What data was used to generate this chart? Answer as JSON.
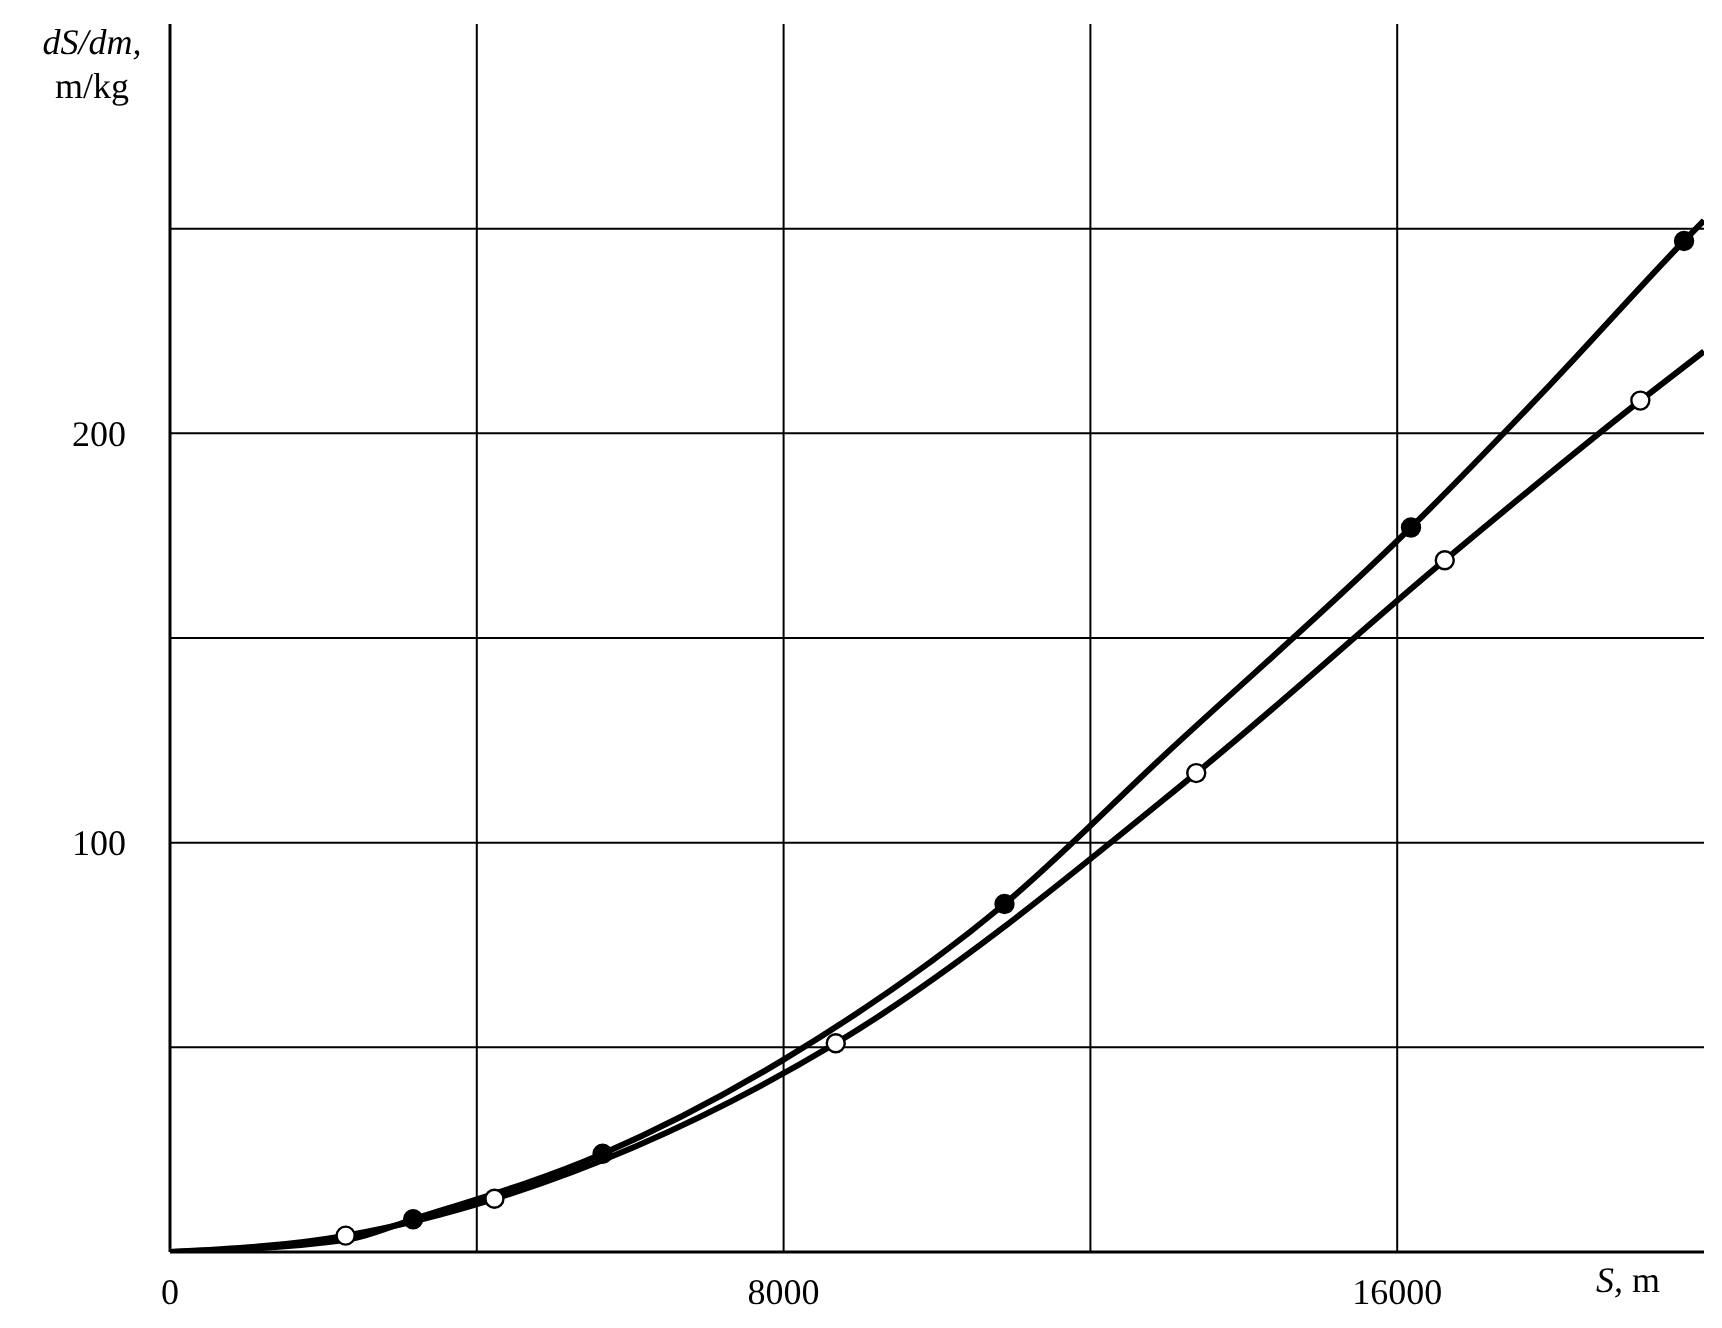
{
  "chart_data": {
    "type": "line",
    "xlabel": "S, m",
    "ylabel": "dS/dm, m/kg",
    "xlim": [
      0,
      20000
    ],
    "xticks": [
      0,
      {
        "value": 4000,
        "label": null
      },
      8000,
      {
        "value": 12000,
        "label": null
      },
      16000
    ],
    "ylim": [
      0,
      300
    ],
    "yticks": [
      {
        "value": 50,
        "label": null
      },
      100,
      {
        "value": 150,
        "label": null
      },
      200,
      {
        "value": 250,
        "label": null
      }
    ],
    "grid": true,
    "series": [
      {
        "marker": "none",
        "color": "#000000",
        "x": [
          0,
          2300,
          3170,
          5640,
          8000,
          10880,
          13000,
          16180,
          18000,
          19740,
          20000
        ],
        "values": [
          0,
          3,
          8,
          24,
          47,
          85,
          122,
          177,
          212,
          247,
          252
        ]
      },
      {
        "marker": "none",
        "color": "#000000",
        "x": [
          0,
          2290,
          4230,
          8680,
          13380,
          16620,
          19170,
          20000
        ],
        "values": [
          0,
          4,
          13,
          51,
          117,
          169,
          208,
          220
        ]
      },
      {
        "type": "scatter",
        "marker": "circle",
        "color": "#000000",
        "x": [
          3170,
          5640,
          10880,
          16180,
          19740
        ],
        "values": [
          8,
          24,
          85,
          177,
          247
        ]
      },
      {
        "type": "scatter",
        "marker": "circle",
        "color": "#ffffff",
        "x": [
          2290,
          4230,
          8680,
          13380,
          16620,
          19170
        ],
        "values": [
          4,
          13,
          51,
          117,
          169,
          208
        ]
      }
    ]
  }
}
